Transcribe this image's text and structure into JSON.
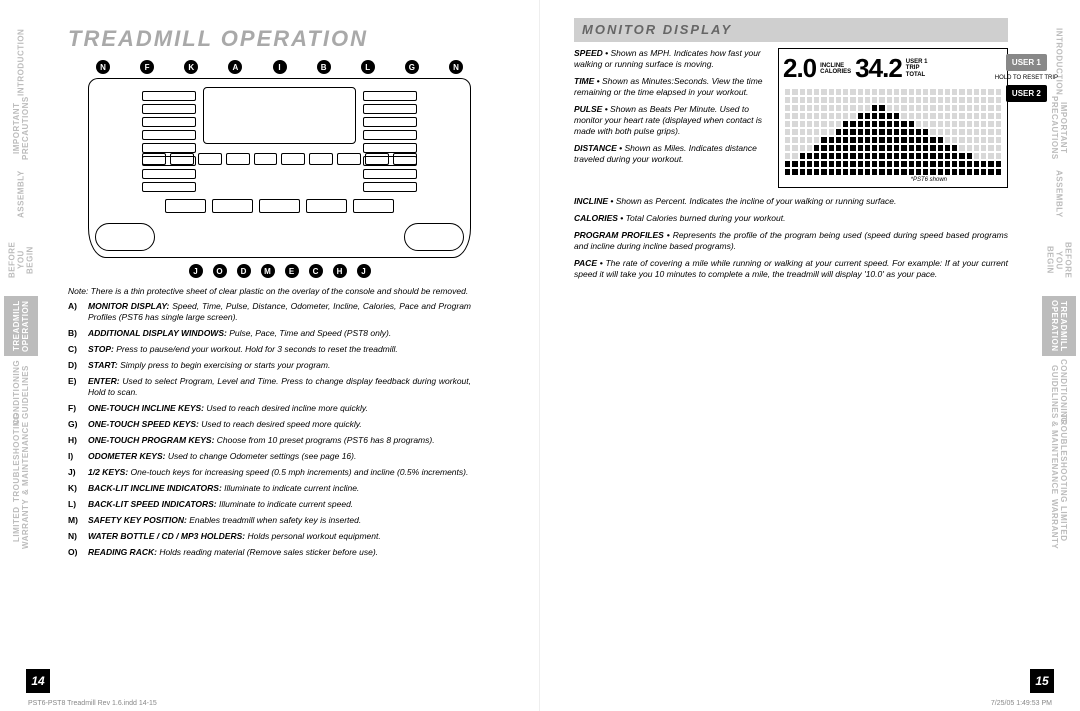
{
  "heading_main": "TREADMILL OPERATION",
  "heading_sub": "MONITOR DISPLAY",
  "page_left_num": "14",
  "page_right_num": "15",
  "footer_left": "PST6-PST8 Treadmill Rev 1.6.indd   14-15",
  "footer_right": "7/25/05   1:49:53 PM",
  "side_tabs": [
    "INTRODUCTION",
    "IMPORTANT PRECAUTIONS",
    "ASSEMBLY",
    "BEFORE YOU BEGIN",
    "TREADMILL OPERATION",
    "CONDITIONING GUIDELINES",
    "TROUBLESHOOTING & MAINTENANCE",
    "LIMITED WARRANTY"
  ],
  "active_tab_index": 4,
  "markers_top": [
    "N",
    "F",
    "K",
    "A",
    "I",
    "B",
    "L",
    "G",
    "N"
  ],
  "markers_bottom": [
    "J",
    "O",
    "D",
    "M",
    "E",
    "C",
    "H",
    "J"
  ],
  "note_text": "Note: There is a thin protective sheet of clear plastic on the overlay of the console and should be removed.",
  "console_defs": [
    {
      "k": "A)",
      "lbl": "MONITOR DISPLAY:",
      "txt": "Speed, Time, Pulse, Distance, Odometer, Incline, Calories, Pace and Program Profiles (PST6 has single large screen)."
    },
    {
      "k": "B)",
      "lbl": "ADDITIONAL DISPLAY WINDOWS:",
      "txt": "Pulse, Pace, Time and Speed (PST8 only)."
    },
    {
      "k": "C)",
      "lbl": "STOP:",
      "txt": "Press to pause/end your workout. Hold for 3 seconds to reset the treadmill."
    },
    {
      "k": "D)",
      "lbl": "START:",
      "txt": "Simply press to begin exercising or starts your program."
    },
    {
      "k": "E)",
      "lbl": "ENTER:",
      "txt": "Used to select Program, Level and Time. Press to change display feedback during workout, Hold to scan."
    },
    {
      "k": "F)",
      "lbl": "ONE-TOUCH INCLINE KEYS:",
      "txt": "Used to reach desired incline more quickly."
    },
    {
      "k": "G)",
      "lbl": "ONE-TOUCH SPEED KEYS:",
      "txt": "Used to reach desired speed more quickly."
    },
    {
      "k": "H)",
      "lbl": "ONE-TOUCH PROGRAM KEYS:",
      "txt": "Choose from 10 preset programs (PST6 has 8 programs)."
    },
    {
      "k": "I)",
      "lbl": "ODOMETER KEYS:",
      "txt": "Used to change Odometer settings (see page 16)."
    },
    {
      "k": "J)",
      "lbl": "1/2 KEYS:",
      "txt": "One-touch keys for increasing speed (0.5 mph increments) and incline (0.5% increments)."
    },
    {
      "k": "K)",
      "lbl": "BACK-LIT INCLINE INDICATORS:",
      "txt": "Illuminate to indicate current incline."
    },
    {
      "k": "L)",
      "lbl": "BACK-LIT SPEED INDICATORS:",
      "txt": "Illuminate to indicate current speed."
    },
    {
      "k": "M)",
      "lbl": "SAFETY KEY POSITION:",
      "txt": "Enables treadmill when safety key is inserted."
    },
    {
      "k": "N)",
      "lbl": "WATER BOTTLE / CD / MP3 HOLDERS:",
      "txt": "Holds personal workout equipment."
    },
    {
      "k": "O)",
      "lbl": "READING RACK:",
      "txt": "Holds reading material (Remove sales sticker before use)."
    }
  ],
  "monitor_terms_side": [
    {
      "t": "SPEED",
      "d": "Shown as MPH. Indicates how fast your walking or running surface is moving."
    },
    {
      "t": "TIME",
      "d": "Shown as Minutes:Seconds. View the time remaining or the time elapsed in your workout."
    },
    {
      "t": "PULSE",
      "d": "Shown as Beats Per Minute. Used to monitor your heart rate (displayed when contact is made with both pulse grips)."
    },
    {
      "t": "DISTANCE",
      "d": "Shown as Miles. Indicates distance traveled during your workout."
    }
  ],
  "monitor_terms_full": [
    {
      "t": "INCLINE",
      "d": "Shown as Percent. Indicates the incline of your walking or running surface."
    },
    {
      "t": "CALORIES",
      "d": "Total Calories burned during your workout."
    },
    {
      "t": "PROGRAM PROFILES",
      "d": "Represents the profile of the program being used (speed during speed based programs and incline during incline based programs)."
    },
    {
      "t": "PACE",
      "d": "The rate of covering a mile while running or walking at your current speed. For example: If at your current speed it will take you 10 minutes to complete a mile, the treadmill will display '10.0' as your pace."
    }
  ],
  "lcd": {
    "val_left": "2.0",
    "val_right": "34.2",
    "label_incline": "INCLINE",
    "label_calories": "CALORIES",
    "label_user1": "USER 1",
    "label_trip": "TRIP",
    "label_total": "TOTAL",
    "btn_user1": "USER 1",
    "btn_user2": "USER 2",
    "btn_tip": "HOLD TO RESET TRIP",
    "disclaimer": "*PST6 shown",
    "matrix_rows": 11,
    "matrix_cols": 30,
    "profile_heights": [
      2,
      2,
      3,
      3,
      4,
      5,
      5,
      6,
      7,
      7,
      8,
      8,
      9,
      9,
      8,
      8,
      7,
      7,
      6,
      6,
      5,
      5,
      4,
      4,
      3,
      3,
      2,
      2,
      2,
      2
    ]
  }
}
